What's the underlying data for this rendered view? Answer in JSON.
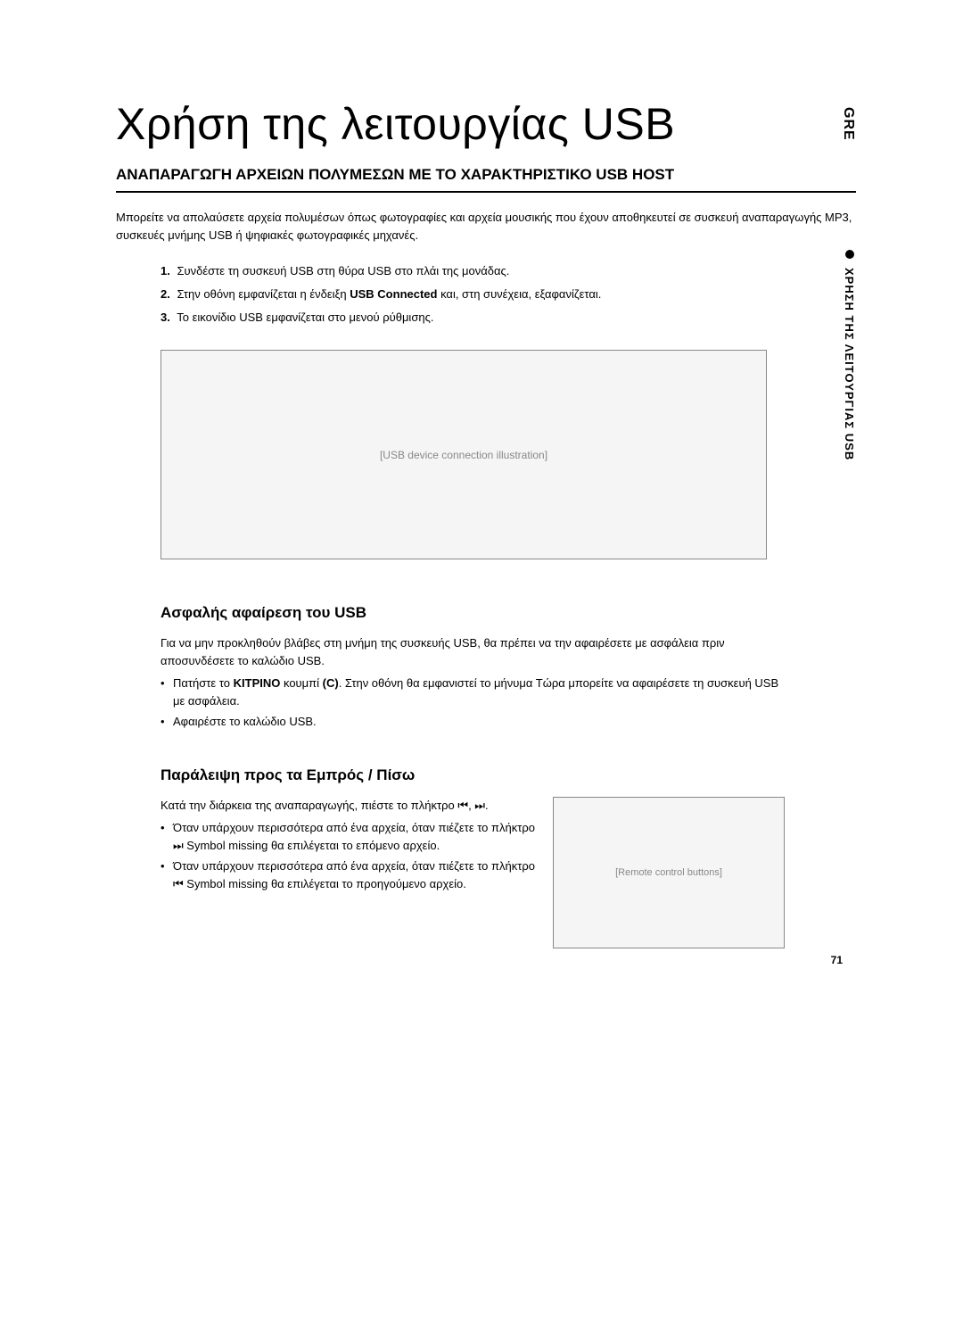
{
  "lang_tab": "GRE",
  "side_label": "ΧΡΗΣΗ ΤΗΣ ΛΕΙΤΟΥΡΓΙΑΣ USB",
  "main_title": "Χρήση της λειτουργίας USB",
  "section_heading": "ΑΝΑΠΑΡΑΓΩΓΗ ΑΡΧΕΙΩΝ ΠΟΛΥΜΕΣΩΝ ΜΕ ΤΟ ΧΑΡΑΚΤΗΡΙΣΤΙΚΟ USB HOST",
  "intro_text": "Μπορείτε να απολαύσετε αρχεία πολυμέσων όπως φωτογραφίες και αρχεία μουσικής που έχουν αποθηκευτεί σε συσκευή αναπαραγωγής MP3, συσκευές μνήμης USB ή ψηφιακές φωτογραφικές μηχανές.",
  "steps": [
    {
      "num": "1.",
      "text": "Συνδέστε τη συσκευή USB στη θύρα USB στο πλάι της μονάδας."
    },
    {
      "num": "2.",
      "prefix": "Στην οθόνη εμφανίζεται η ένδειξη ",
      "bold": "USB Connected",
      "suffix": " και, στη συνέχεια, εξαφανίζεται."
    },
    {
      "num": "3.",
      "text": "Το εικονίδιο USB εμφανίζεται στο μενού ρύθμισης."
    }
  ],
  "image_alt": "[USB device connection illustration]",
  "safe_remove": {
    "heading": "Ασφαλής αφαίρεση του USB",
    "intro": "Για να μην προκληθούν βλάβες στη μνήμη της συσκευής USB, θα πρέπει να την αφαιρέσετε με ασφάλεια πριν αποσυνδέσετε το καλώδιο USB.",
    "bullets": [
      {
        "prefix": "Πατήστε το ",
        "bold": "ΚΙΤΡΙΝΟ",
        "mid": " κουμπί ",
        "bold2": "(C)",
        "suffix": ". Στην οθόνη θα εμφανιστεί το μήνυμα Τώρα μπορείτε να αφαιρέσετε τη συσκευή USB με ασφάλεια."
      },
      {
        "text": "Αφαιρέστε το καλώδιο USB."
      }
    ]
  },
  "skip": {
    "heading": "Παράλειψη προς τα Εμπρός / Πίσω",
    "intro": "Κατά την διάρκεια της αναπαραγωγής, πιέστε το πλήκτρο ⏮, ⏭.",
    "bullets": [
      "Όταν υπάρχουν περισσότερα από ένα αρχεία, όταν πιέζετε το πλήκτρο ⏭ Symbol missing θα επιλέγεται το επόμενο αρχείο.",
      "Όταν υπάρχουν περισσότερα από ένα αρχεία, όταν πιέζετε το πλήκτρο ⏮ Symbol missing θα επιλέγεται το προηγούμενο αρχείο."
    ],
    "remote_alt": "[Remote control buttons]"
  },
  "page_number": "71"
}
